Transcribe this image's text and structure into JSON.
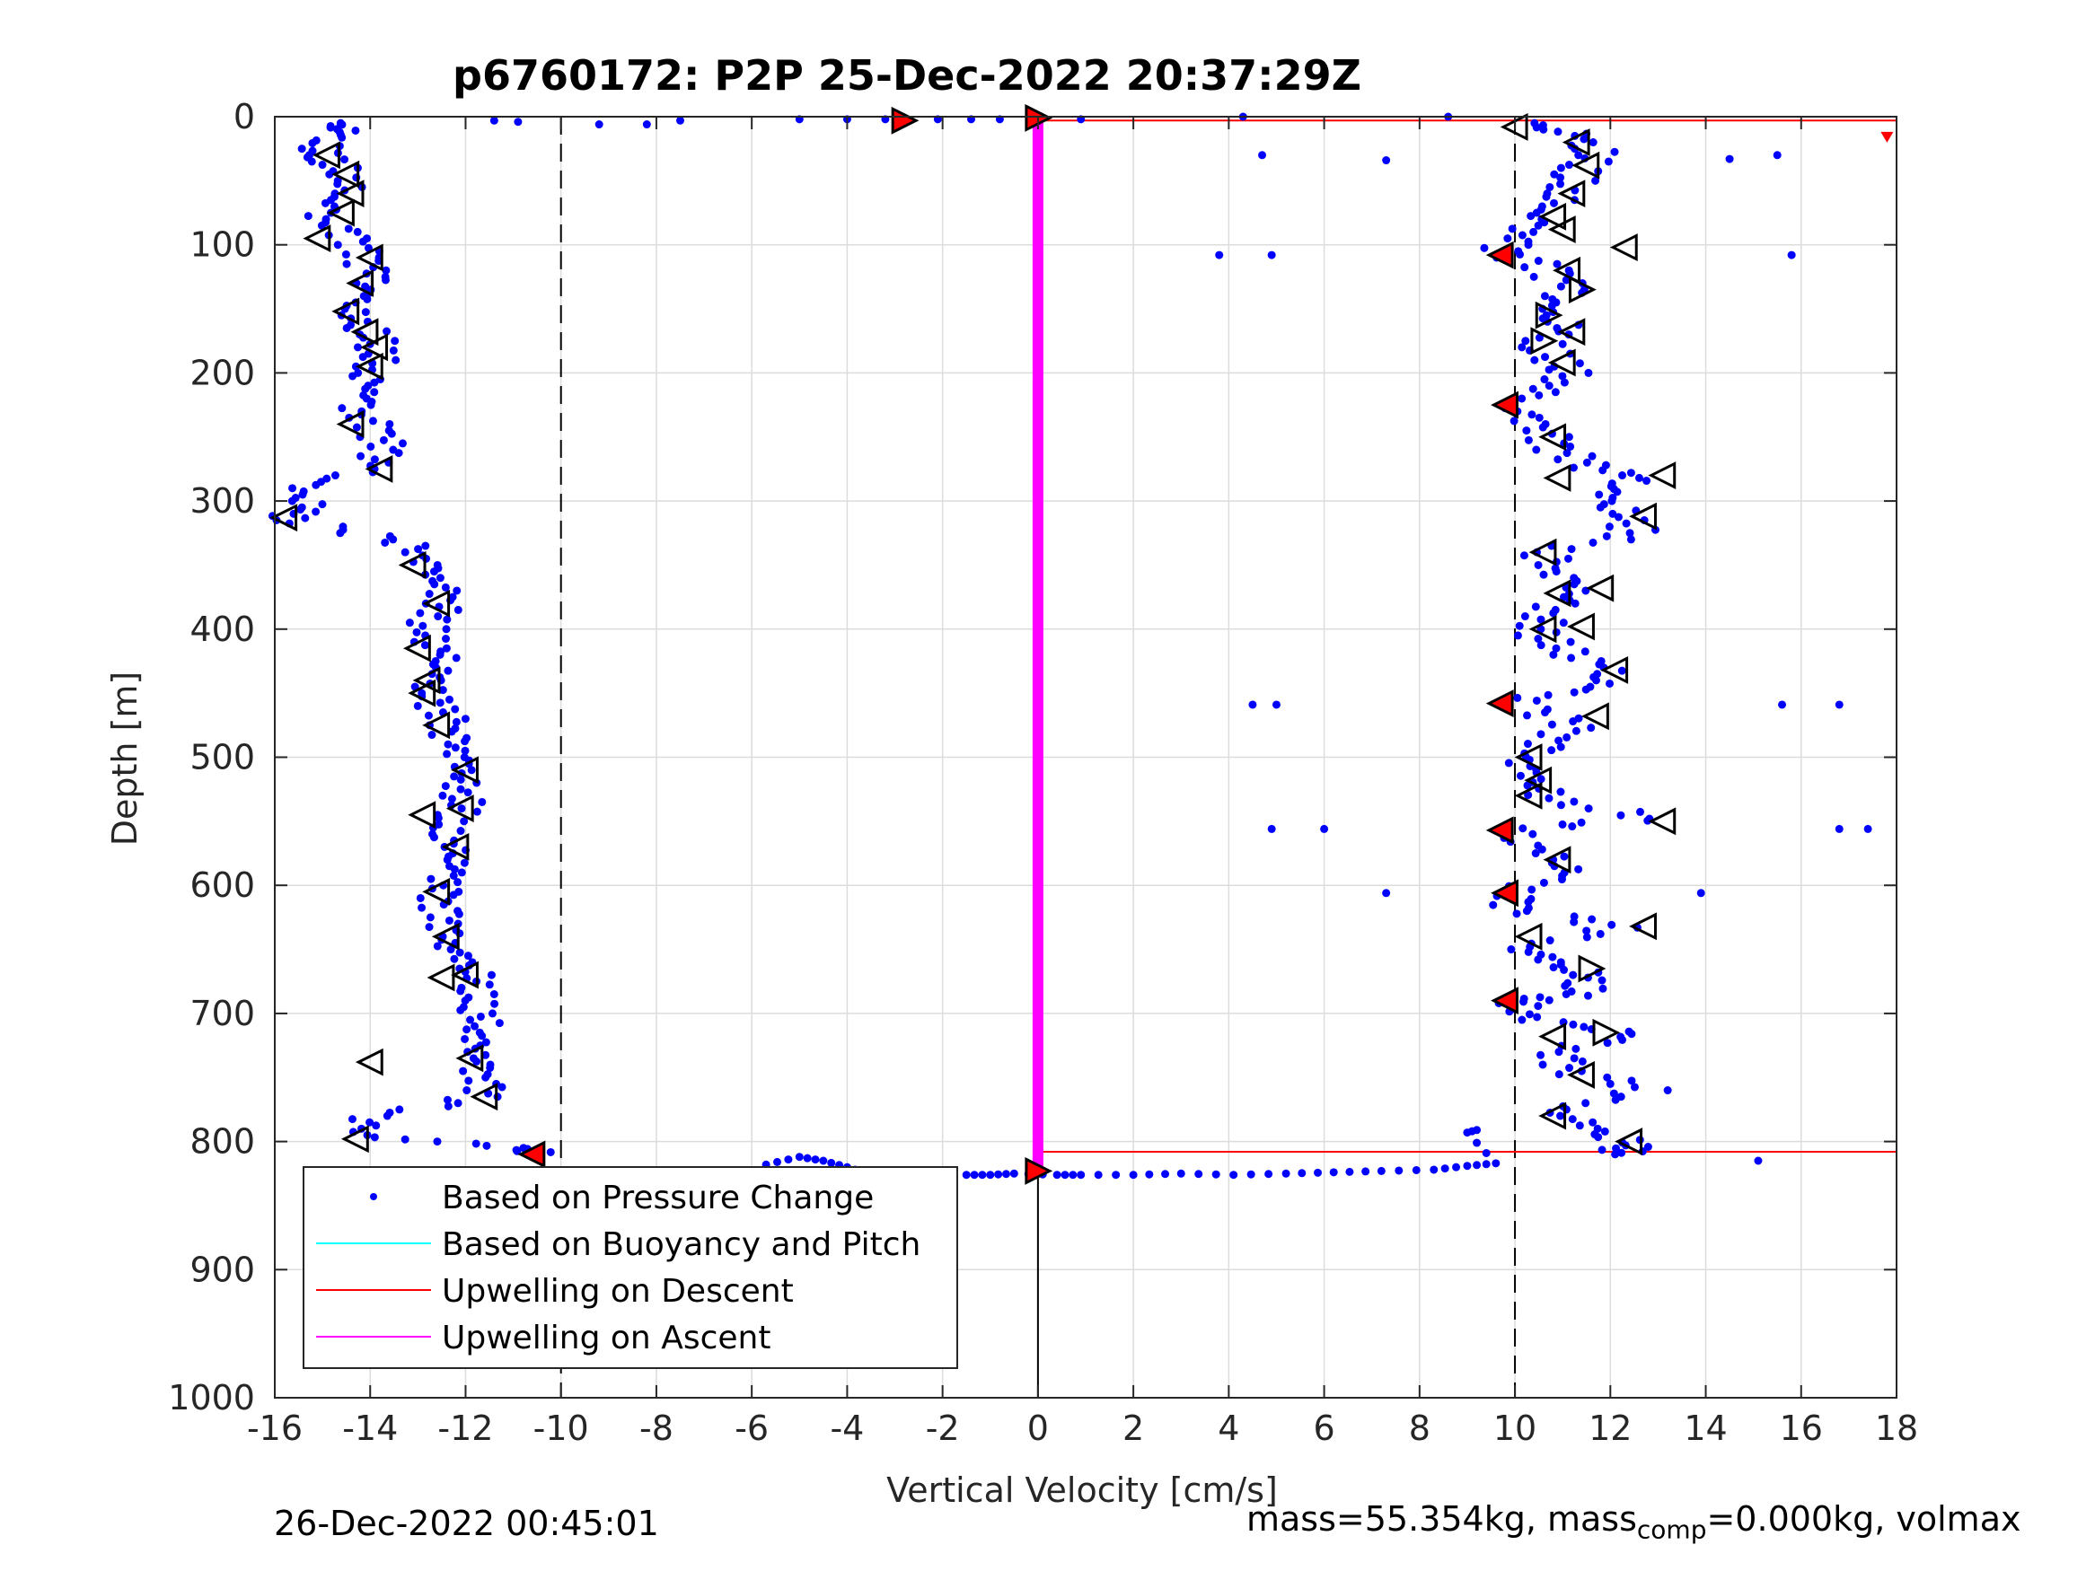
{
  "chart_data": {
    "type": "scatter",
    "title": "p6760172: P2P 25-Dec-2022 20:37:29Z",
    "xlabel": "Vertical Velocity [cm/s]",
    "ylabel": "Depth [m]",
    "xlim": [
      -16,
      18
    ],
    "ylim": [
      0,
      1000
    ],
    "y_reversed": true,
    "grid": true,
    "x_ticks": [
      -16,
      -14,
      -12,
      -10,
      -8,
      -6,
      -4,
      -2,
      0,
      2,
      4,
      6,
      8,
      10,
      12,
      14,
      16,
      18
    ],
    "y_ticks": [
      0,
      100,
      200,
      300,
      400,
      500,
      600,
      700,
      800,
      900,
      1000
    ],
    "legend_position": "bottom-left",
    "colors": {
      "pressure": "#0000ff",
      "buoyancy": "#00ffff",
      "upwelling_descent": "#ff0000",
      "upwelling_ascent": "#ff00ff",
      "reference_lines": "#000000"
    },
    "reference_lines": {
      "dashed_vertical_x": [
        -10,
        10
      ],
      "solid_vertical_x": 0
    },
    "series": [
      {
        "name": "Based on Pressure Change",
        "marker": "dot",
        "descent_profile": [
          [
            -14.8,
            5
          ],
          [
            -14.6,
            12
          ],
          [
            -15.2,
            25
          ],
          [
            -14.9,
            35
          ],
          [
            -14.4,
            50
          ],
          [
            -14.7,
            65
          ],
          [
            -15.0,
            80
          ],
          [
            -14.3,
            95
          ],
          [
            -14.1,
            110
          ],
          [
            -13.9,
            125
          ],
          [
            -14.2,
            140
          ],
          [
            -14.5,
            155
          ],
          [
            -14.0,
            170
          ],
          [
            -13.8,
            185
          ],
          [
            -14.1,
            200
          ],
          [
            -13.9,
            215
          ],
          [
            -14.3,
            230
          ],
          [
            -13.8,
            245
          ],
          [
            -13.7,
            260
          ],
          [
            -14.0,
            275
          ],
          [
            -15.6,
            290
          ],
          [
            -15.3,
            305
          ],
          [
            -15.8,
            315
          ],
          [
            -13.4,
            330
          ],
          [
            -12.8,
            345
          ],
          [
            -12.6,
            360
          ],
          [
            -12.4,
            375
          ],
          [
            -12.7,
            390
          ],
          [
            -12.9,
            405
          ],
          [
            -12.5,
            420
          ],
          [
            -12.6,
            435
          ],
          [
            -12.8,
            450
          ],
          [
            -12.4,
            465
          ],
          [
            -12.3,
            480
          ],
          [
            -12.1,
            495
          ],
          [
            -12.0,
            510
          ],
          [
            -12.2,
            525
          ],
          [
            -12.1,
            540
          ],
          [
            -12.6,
            555
          ],
          [
            -12.3,
            570
          ],
          [
            -12.2,
            585
          ],
          [
            -12.4,
            600
          ],
          [
            -12.5,
            615
          ],
          [
            -12.3,
            630
          ],
          [
            -12.4,
            645
          ],
          [
            -12.0,
            660
          ],
          [
            -11.8,
            675
          ],
          [
            -11.9,
            690
          ],
          [
            -11.7,
            705
          ],
          [
            -11.8,
            720
          ],
          [
            -11.7,
            735
          ],
          [
            -11.6,
            750
          ],
          [
            -11.5,
            765
          ],
          [
            -13.9,
            780
          ],
          [
            -14.3,
            795
          ],
          [
            -10.9,
            805
          ],
          [
            -10.5,
            810
          ]
        ],
        "ascent_profile": [
          [
            10.2,
            5
          ],
          [
            11.3,
            15
          ],
          [
            11.6,
            30
          ],
          [
            11.2,
            45
          ],
          [
            11.0,
            60
          ],
          [
            10.6,
            75
          ],
          [
            10.3,
            90
          ],
          [
            9.8,
            105
          ],
          [
            10.8,
            120
          ],
          [
            11.2,
            135
          ],
          [
            10.5,
            150
          ],
          [
            11.0,
            165
          ],
          [
            10.4,
            180
          ],
          [
            11.1,
            195
          ],
          [
            10.9,
            210
          ],
          [
            9.9,
            225
          ],
          [
            10.5,
            240
          ],
          [
            10.8,
            255
          ],
          [
            11.3,
            270
          ],
          [
            12.5,
            282
          ],
          [
            11.8,
            295
          ],
          [
            12.2,
            310
          ],
          [
            12.6,
            325
          ],
          [
            10.6,
            340
          ],
          [
            10.9,
            355
          ],
          [
            11.4,
            370
          ],
          [
            10.7,
            385
          ],
          [
            10.4,
            400
          ],
          [
            10.8,
            415
          ],
          [
            11.9,
            430
          ],
          [
            11.7,
            445
          ],
          [
            9.8,
            458
          ],
          [
            11.3,
            472
          ],
          [
            10.9,
            487
          ],
          [
            10.2,
            502
          ],
          [
            10.4,
            517
          ],
          [
            10.6,
            532
          ],
          [
            12.8,
            548
          ],
          [
            9.7,
            557
          ],
          [
            10.6,
            575
          ],
          [
            11.2,
            590
          ],
          [
            9.9,
            606
          ],
          [
            10.2,
            620
          ],
          [
            12.4,
            633
          ],
          [
            10.1,
            648
          ],
          [
            10.8,
            660
          ],
          [
            11.5,
            672
          ],
          [
            11.2,
            685
          ],
          [
            9.9,
            692
          ],
          [
            10.4,
            705
          ],
          [
            12.6,
            716
          ],
          [
            10.9,
            730
          ],
          [
            11.2,
            745
          ],
          [
            12.9,
            760
          ],
          [
            10.8,
            775
          ],
          [
            11.6,
            790
          ],
          [
            12.4,
            803
          ],
          [
            12.1,
            810
          ]
        ],
        "surface_band": [
          [
            -11.4,
            3
          ],
          [
            -10.9,
            4
          ],
          [
            -9.2,
            6
          ],
          [
            -8.2,
            6
          ],
          [
            -7.5,
            3
          ],
          [
            -5.0,
            2
          ],
          [
            -4.0,
            2
          ],
          [
            -3.2,
            2
          ],
          [
            -2.1,
            2
          ],
          [
            -1.4,
            2
          ],
          [
            -0.8,
            2
          ],
          [
            0.9,
            2
          ],
          [
            4.3,
            0
          ],
          [
            8.6,
            0
          ]
        ],
        "bottom_band": [
          [
            -5.7,
            818
          ],
          [
            -5.0,
            812
          ],
          [
            -4.5,
            815
          ],
          [
            -4.0,
            820
          ],
          [
            -3.5,
            826
          ],
          [
            -3.0,
            826
          ],
          [
            -2.3,
            825
          ],
          [
            -1.5,
            826
          ],
          [
            -1.0,
            826
          ],
          [
            -0.5,
            825
          ],
          [
            0.4,
            826
          ],
          [
            0.9,
            826
          ],
          [
            2.0,
            826
          ],
          [
            3.0,
            825
          ],
          [
            4.1,
            826
          ],
          [
            5.2,
            825
          ],
          [
            6.2,
            824
          ],
          [
            7.2,
            823
          ],
          [
            8.3,
            822
          ],
          [
            9.0,
            819
          ],
          [
            9.6,
            817
          ],
          [
            9.0,
            793
          ],
          [
            9.3,
            790
          ]
        ],
        "outliers": [
          [
            4.7,
            30
          ],
          [
            7.3,
            34
          ],
          [
            3.8,
            108
          ],
          [
            4.9,
            108
          ],
          [
            15.8,
            108
          ],
          [
            14.5,
            33
          ],
          [
            15.5,
            30
          ],
          [
            4.5,
            459
          ],
          [
            5.0,
            459
          ],
          [
            15.6,
            459
          ],
          [
            16.8,
            459
          ],
          [
            4.9,
            556
          ],
          [
            6.0,
            556
          ],
          [
            16.8,
            556
          ],
          [
            17.4,
            556
          ],
          [
            7.3,
            606
          ],
          [
            13.9,
            606
          ],
          [
            15.1,
            815
          ]
        ]
      },
      {
        "name": "Based on Buoyancy and Pitch",
        "values": []
      },
      {
        "name": "Upwelling on Descent",
        "line_depths": [
          3,
          808
        ],
        "x_range": [
          0,
          18
        ]
      },
      {
        "name": "Upwelling on Ascent",
        "x": 0,
        "depth_range": [
          0,
          826
        ]
      }
    ],
    "markers": {
      "descent_triangles": [
        [
          -14.9,
          30
        ],
        [
          -14.5,
          45
        ],
        [
          -14.4,
          60
        ],
        [
          -14.6,
          75
        ],
        [
          -15.1,
          95
        ],
        [
          -14.0,
          110
        ],
        [
          -14.2,
          130
        ],
        [
          -14.5,
          152
        ],
        [
          -14.1,
          168
        ],
        [
          -13.9,
          180
        ],
        [
          -14.0,
          195
        ],
        [
          -14.4,
          240
        ],
        [
          -13.8,
          275
        ],
        [
          -15.8,
          313
        ],
        [
          -13.1,
          350
        ],
        [
          -12.6,
          380
        ],
        [
          -13.0,
          415
        ],
        [
          -12.8,
          440
        ],
        [
          -12.9,
          450
        ],
        [
          -12.6,
          475
        ],
        [
          -12.0,
          510
        ],
        [
          -12.1,
          540
        ],
        [
          -12.9,
          545
        ],
        [
          -12.2,
          570
        ],
        [
          -12.6,
          605
        ],
        [
          -12.4,
          640
        ],
        [
          -12.5,
          672
        ],
        [
          -12.0,
          670
        ],
        [
          -11.9,
          735
        ],
        [
          -14.0,
          738
        ],
        [
          -11.6,
          765
        ],
        [
          -14.3,
          798
        ]
      ],
      "ascent_triangles": [
        [
          10.0,
          8
        ],
        [
          11.3,
          20
        ],
        [
          11.5,
          38
        ],
        [
          11.2,
          60
        ],
        [
          10.8,
          78
        ],
        [
          11.0,
          88
        ],
        [
          12.3,
          102
        ],
        [
          11.1,
          120
        ],
        [
          11.4,
          135
        ],
        [
          10.7,
          155
        ],
        [
          11.2,
          168
        ],
        [
          10.6,
          175
        ],
        [
          11.0,
          192
        ],
        [
          10.8,
          250
        ],
        [
          10.9,
          282
        ],
        [
          13.1,
          280
        ],
        [
          12.7,
          312
        ],
        [
          10.6,
          340
        ],
        [
          10.9,
          372
        ],
        [
          11.8,
          368
        ],
        [
          10.6,
          400
        ],
        [
          11.4,
          398
        ],
        [
          12.1,
          432
        ],
        [
          11.7,
          468
        ],
        [
          10.3,
          500
        ],
        [
          10.5,
          518
        ],
        [
          10.3,
          530
        ],
        [
          13.1,
          550
        ],
        [
          10.9,
          580
        ],
        [
          12.7,
          632
        ],
        [
          10.3,
          640
        ],
        [
          11.6,
          665
        ],
        [
          10.8,
          718
        ],
        [
          11.9,
          715
        ],
        [
          11.4,
          748
        ],
        [
          10.8,
          780
        ],
        [
          12.4,
          800
        ]
      ],
      "red_triangles": [
        [
          -2.8,
          3
        ],
        [
          0.0,
          1
        ],
        [
          9.7,
          108
        ],
        [
          9.8,
          225
        ],
        [
          9.7,
          458
        ],
        [
          9.7,
          557
        ],
        [
          9.8,
          606
        ],
        [
          9.8,
          690
        ],
        [
          -10.6,
          810
        ],
        [
          0.0,
          823
        ]
      ],
      "right_edge_marker": [
        17.8,
        16
      ]
    },
    "legend": [
      "Based on Pressure Change",
      "Based on Buoyancy and Pitch",
      "Upwelling on Descent",
      "Upwelling on Ascent"
    ]
  },
  "footer": {
    "timestamp": "26-Dec-2022 00:45:01",
    "mass_prefix": "mass=55.354kg, mass",
    "mass_sub": "comp",
    "mass_suffix": "=0.000kg, volmax"
  }
}
